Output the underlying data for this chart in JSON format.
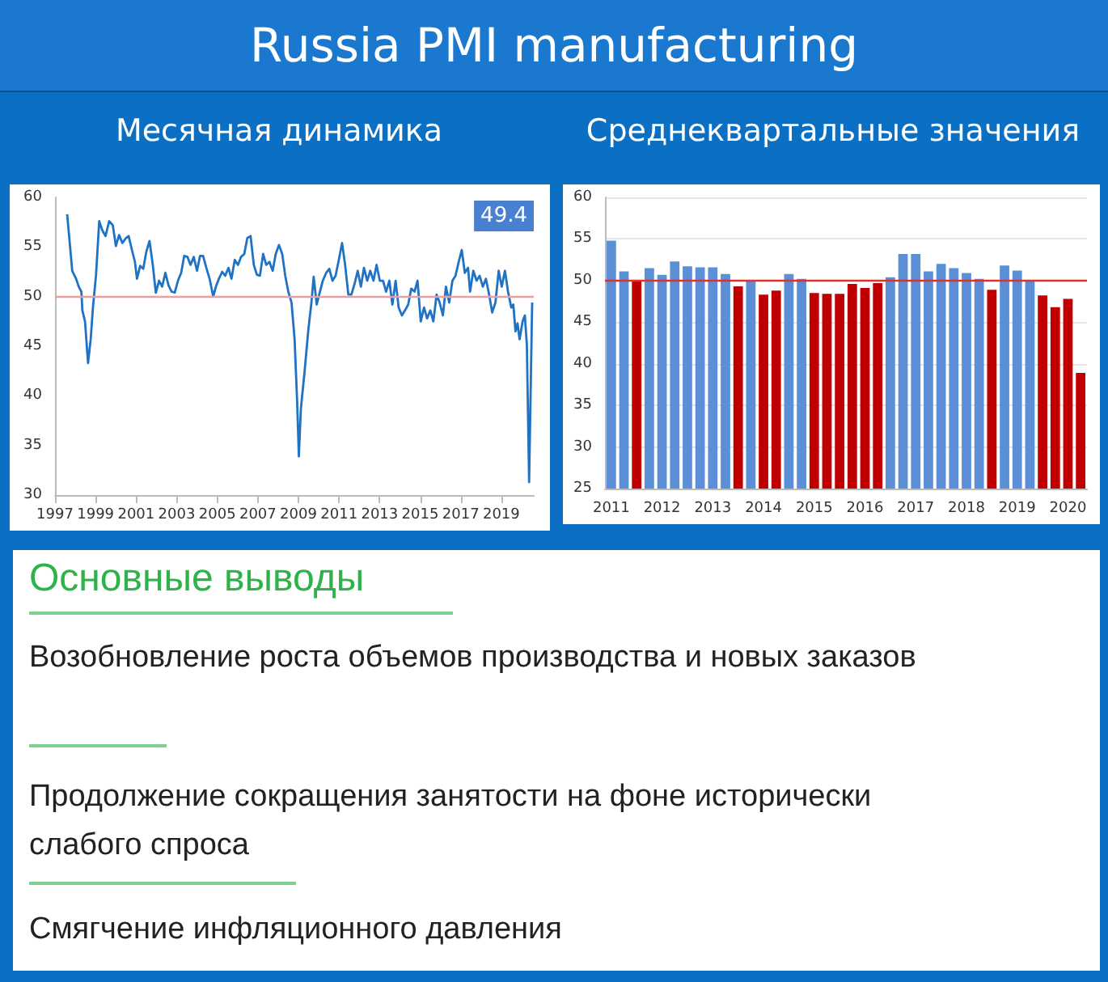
{
  "chart_data": [
    {
      "type": "line",
      "title": "Russia PMI manufacturing",
      "subtitle": "Месячная динамика",
      "x": [
        1997.6,
        1997.85,
        1998.04,
        1998.17,
        1998.3,
        1998.35,
        1998.48,
        1998.63,
        1998.76,
        1998.87,
        1999.02,
        1999.18,
        1999.33,
        1999.49,
        1999.67,
        1999.85,
        2000.0,
        2000.16,
        2000.32,
        2000.5,
        2000.63,
        2000.78,
        2000.94,
        2001.04,
        2001.2,
        2001.35,
        2001.5,
        2001.66,
        2001.82,
        2001.97,
        2002.13,
        2002.28,
        2002.44,
        2002.6,
        2002.75,
        2002.9,
        2003.06,
        2003.22,
        2003.37,
        2003.53,
        2003.68,
        2003.84,
        2004.0,
        2004.15,
        2004.3,
        2004.46,
        2004.62,
        2004.8,
        2004.93,
        2005.08,
        2005.24,
        2005.39,
        2005.55,
        2005.7,
        2005.86,
        2006.02,
        2006.17,
        2006.33,
        2006.48,
        2006.64,
        2006.8,
        2006.95,
        2007.1,
        2007.26,
        2007.41,
        2007.57,
        2007.73,
        2007.88,
        2008.04,
        2008.2,
        2008.35,
        2008.5,
        2008.66,
        2008.81,
        2008.94,
        2009.02,
        2009.12,
        2009.3,
        2009.49,
        2009.64,
        2009.75,
        2009.9,
        2010.06,
        2010.2,
        2010.37,
        2010.52,
        2010.68,
        2010.83,
        2010.99,
        2011.15,
        2011.3,
        2011.46,
        2011.61,
        2011.77,
        2011.92,
        2012.08,
        2012.23,
        2012.39,
        2012.54,
        2012.7,
        2012.85,
        2013.01,
        2013.17,
        2013.32,
        2013.48,
        2013.63,
        2013.79,
        2013.94,
        2014.1,
        2014.25,
        2014.41,
        2014.56,
        2014.72,
        2014.87,
        2015.03,
        2015.19,
        2015.34,
        2015.5,
        2015.65,
        2015.81,
        2015.96,
        2016.12,
        2016.27,
        2016.43,
        2016.59,
        2016.74,
        2016.9,
        2017.05,
        2017.2,
        2017.36,
        2017.46,
        2017.62,
        2017.78,
        2017.93,
        2018.09,
        2018.24,
        2018.4,
        2018.55,
        2018.71,
        2018.87,
        2019.02,
        2019.18,
        2019.33,
        2019.49,
        2019.59,
        2019.7,
        2019.8,
        2019.9,
        2020.05,
        2020.16,
        2020.26,
        2020.37,
        2020.52
      ],
      "series": [
        {
          "color": "#1f72c4",
          "values": [
            58.3,
            52.6,
            51.8,
            51.0,
            50.5,
            48.6,
            47.5,
            43.3,
            45.7,
            48.9,
            52.1,
            57.6,
            56.7,
            56.1,
            57.6,
            57.2,
            55.1,
            56.2,
            55.4,
            55.9,
            56.1,
            54.8,
            53.5,
            51.8,
            53.1,
            52.8,
            54.5,
            55.6,
            53.2,
            50.4,
            51.6,
            51.0,
            52.4,
            51.1,
            50.5,
            50.4,
            51.6,
            52.4,
            54.1,
            54.0,
            53.2,
            54.0,
            52.6,
            54.1,
            54.1,
            52.9,
            51.8,
            50.0,
            51.0,
            51.8,
            52.5,
            52.1,
            52.9,
            51.8,
            53.7,
            53.2,
            54.0,
            54.3,
            55.9,
            56.1,
            53.2,
            52.2,
            52.1,
            54.3,
            53.2,
            53.5,
            52.6,
            54.3,
            55.2,
            54.3,
            52.1,
            50.5,
            49.4,
            45.7,
            39.2,
            33.9,
            38.7,
            42.4,
            46.7,
            49.4,
            52.0,
            49.2,
            50.5,
            51.6,
            52.4,
            52.8,
            51.6,
            52.1,
            53.7,
            55.4,
            53.2,
            50.2,
            50.2,
            51.3,
            52.6,
            51.0,
            52.9,
            51.6,
            52.6,
            51.6,
            53.2,
            51.6,
            51.6,
            50.5,
            51.6,
            49.2,
            51.6,
            48.9,
            48.1,
            48.6,
            49.2,
            50.8,
            50.5,
            51.6,
            47.5,
            48.9,
            47.8,
            48.6,
            47.5,
            50.2,
            49.4,
            48.1,
            51.0,
            49.4,
            51.6,
            52.1,
            53.5,
            54.7,
            52.4,
            52.9,
            50.5,
            52.6,
            51.6,
            52.1,
            51.0,
            51.8,
            50.2,
            48.4,
            49.4,
            52.6,
            51.0,
            52.6,
            50.5,
            48.9,
            49.2,
            46.5,
            47.3,
            45.7,
            47.5,
            48.1,
            45.1,
            31.3,
            49.4
          ]
        }
      ],
      "xlim": [
        1997,
        2020.6
      ],
      "xticks": [
        1997,
        1999,
        2001,
        2003,
        2005,
        2007,
        2009,
        2011,
        2013,
        2015,
        2017,
        2019
      ],
      "ylim": [
        30,
        60
      ],
      "yticks": [
        30,
        35,
        40,
        45,
        50,
        55,
        60
      ],
      "ref_lines": [
        {
          "axis": "y",
          "value": 50,
          "color": "#e8a0a0"
        }
      ],
      "annotations": [
        "49.4"
      ],
      "grid": false
    },
    {
      "type": "bar",
      "title": "Среднеквартальные значения",
      "categories": [
        "2011",
        null,
        null,
        null,
        "2012",
        null,
        null,
        null,
        "2013",
        null,
        null,
        null,
        "2014",
        null,
        null,
        null,
        "2015",
        null,
        null,
        null,
        "2016",
        null,
        null,
        null,
        "2017",
        null,
        null,
        null,
        "2018",
        null,
        null,
        null,
        "2019",
        null,
        null,
        null,
        "2020",
        null
      ],
      "values": [
        54.8,
        51.1,
        50.0,
        51.5,
        50.7,
        52.3,
        51.7,
        51.6,
        51.6,
        50.8,
        49.3,
        50.0,
        48.3,
        48.8,
        50.8,
        50.2,
        48.5,
        48.4,
        48.4,
        49.6,
        49.1,
        49.7,
        50.4,
        53.2,
        53.2,
        51.1,
        52.0,
        51.5,
        50.9,
        50.2,
        48.9,
        51.8,
        51.2,
        50.0,
        48.2,
        46.8,
        47.8,
        38.9
      ],
      "colors": [
        "#5b8fd6",
        "#5b8fd6",
        "#c00000",
        "#5b8fd6",
        "#5b8fd6",
        "#5b8fd6",
        "#5b8fd6",
        "#5b8fd6",
        "#5b8fd6",
        "#5b8fd6",
        "#c00000",
        "#5b8fd6",
        "#c00000",
        "#c00000",
        "#5b8fd6",
        "#5b8fd6",
        "#c00000",
        "#c00000",
        "#c00000",
        "#c00000",
        "#c00000",
        "#c00000",
        "#5b8fd6",
        "#5b8fd6",
        "#5b8fd6",
        "#5b8fd6",
        "#5b8fd6",
        "#5b8fd6",
        "#5b8fd6",
        "#5b8fd6",
        "#c00000",
        "#5b8fd6",
        "#5b8fd6",
        "#5b8fd6",
        "#c00000",
        "#c00000",
        "#c00000",
        "#c00000"
      ],
      "ylim": [
        25,
        60
      ],
      "yticks": [
        25,
        30,
        35,
        40,
        45,
        50,
        55,
        60
      ],
      "ref_lines": [
        {
          "axis": "y",
          "value": 50,
          "color": "#e03030"
        }
      ],
      "grid": "y"
    },
    {
      "type": "other",
      "title": "Основные выводы",
      "annotations": [
        "Возобновление роста объемов производства и новых заказов",
        "Продолжение сокращения занятости на фоне исторически слабого спроса",
        "Смягчение инфляционного давления"
      ]
    }
  ]
}
